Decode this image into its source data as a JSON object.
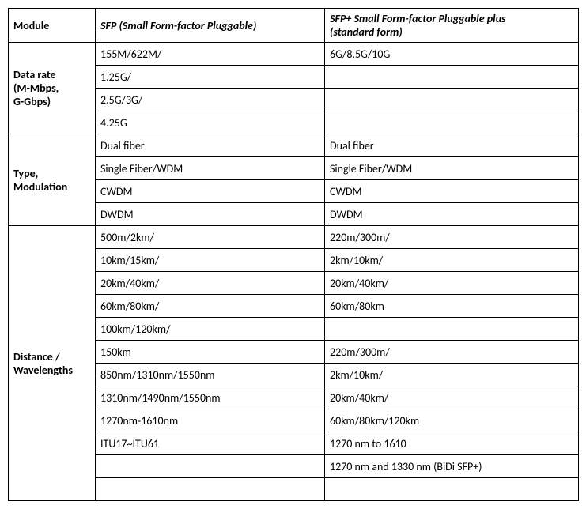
{
  "header": {
    "col1": "Module",
    "col2": "SFP (Small Form-factor Pluggable)",
    "col3": "SFP+ Small Form-factor Pluggable plus\n (standard form)"
  },
  "sections": {
    "dataRate": {
      "label": "Data rate\n(M-Mbps,\nG-Gbps)",
      "rows": [
        {
          "sfp": "155M/622M/",
          "sfpp": "6G/8.5G/10G"
        },
        {
          "sfp": "1.25G/",
          "sfpp": ""
        },
        {
          "sfp": "2.5G/3G/",
          "sfpp": ""
        },
        {
          "sfp": "4.25G",
          "sfpp": ""
        }
      ]
    },
    "type": {
      "label": "Type,\nModulation",
      "rows": [
        {
          "sfp": "Dual fiber",
          "sfpp": "Dual fiber"
        },
        {
          "sfp": "Single Fiber/WDM",
          "sfpp": "Single Fiber/WDM"
        },
        {
          "sfp": "CWDM",
          "sfpp": "CWDM"
        },
        {
          "sfp": "DWDM",
          "sfpp": "DWDM"
        }
      ]
    },
    "distance": {
      "label": "Distance /\nWavelengths",
      "rows": [
        {
          "sfp": "500m/2km/",
          "sfpp": "220m/300m/"
        },
        {
          "sfp": "10km/15km/",
          "sfpp": "2km/10km/"
        },
        {
          "sfp": "20km/40km/",
          "sfpp": "20km/40km/"
        },
        {
          "sfp": "60km/80km/",
          "sfpp": "60km/80km"
        },
        {
          "sfp": "100km/120km/",
          "sfpp": ""
        },
        {
          "sfp": "150km",
          "sfpp": " 220m/300m/"
        },
        {
          "sfp": "850nm/1310nm/1550nm",
          "sfpp": "2km/10km/"
        },
        {
          "sfp": "1310nm/1490nm/1550nm",
          "sfpp": "20km/40km/"
        },
        {
          "sfp": "1270nm-1610nm",
          "sfpp": "60km/80km/120km"
        },
        {
          "sfp": "ITU17~ITU61",
          "sfpp": "1270 nm to 1610"
        },
        {
          "sfp": "",
          "sfpp": "1270 nm and 1330 nm (BiDi SFP+)"
        },
        {
          "sfp": "",
          "sfpp": ""
        }
      ]
    }
  }
}
